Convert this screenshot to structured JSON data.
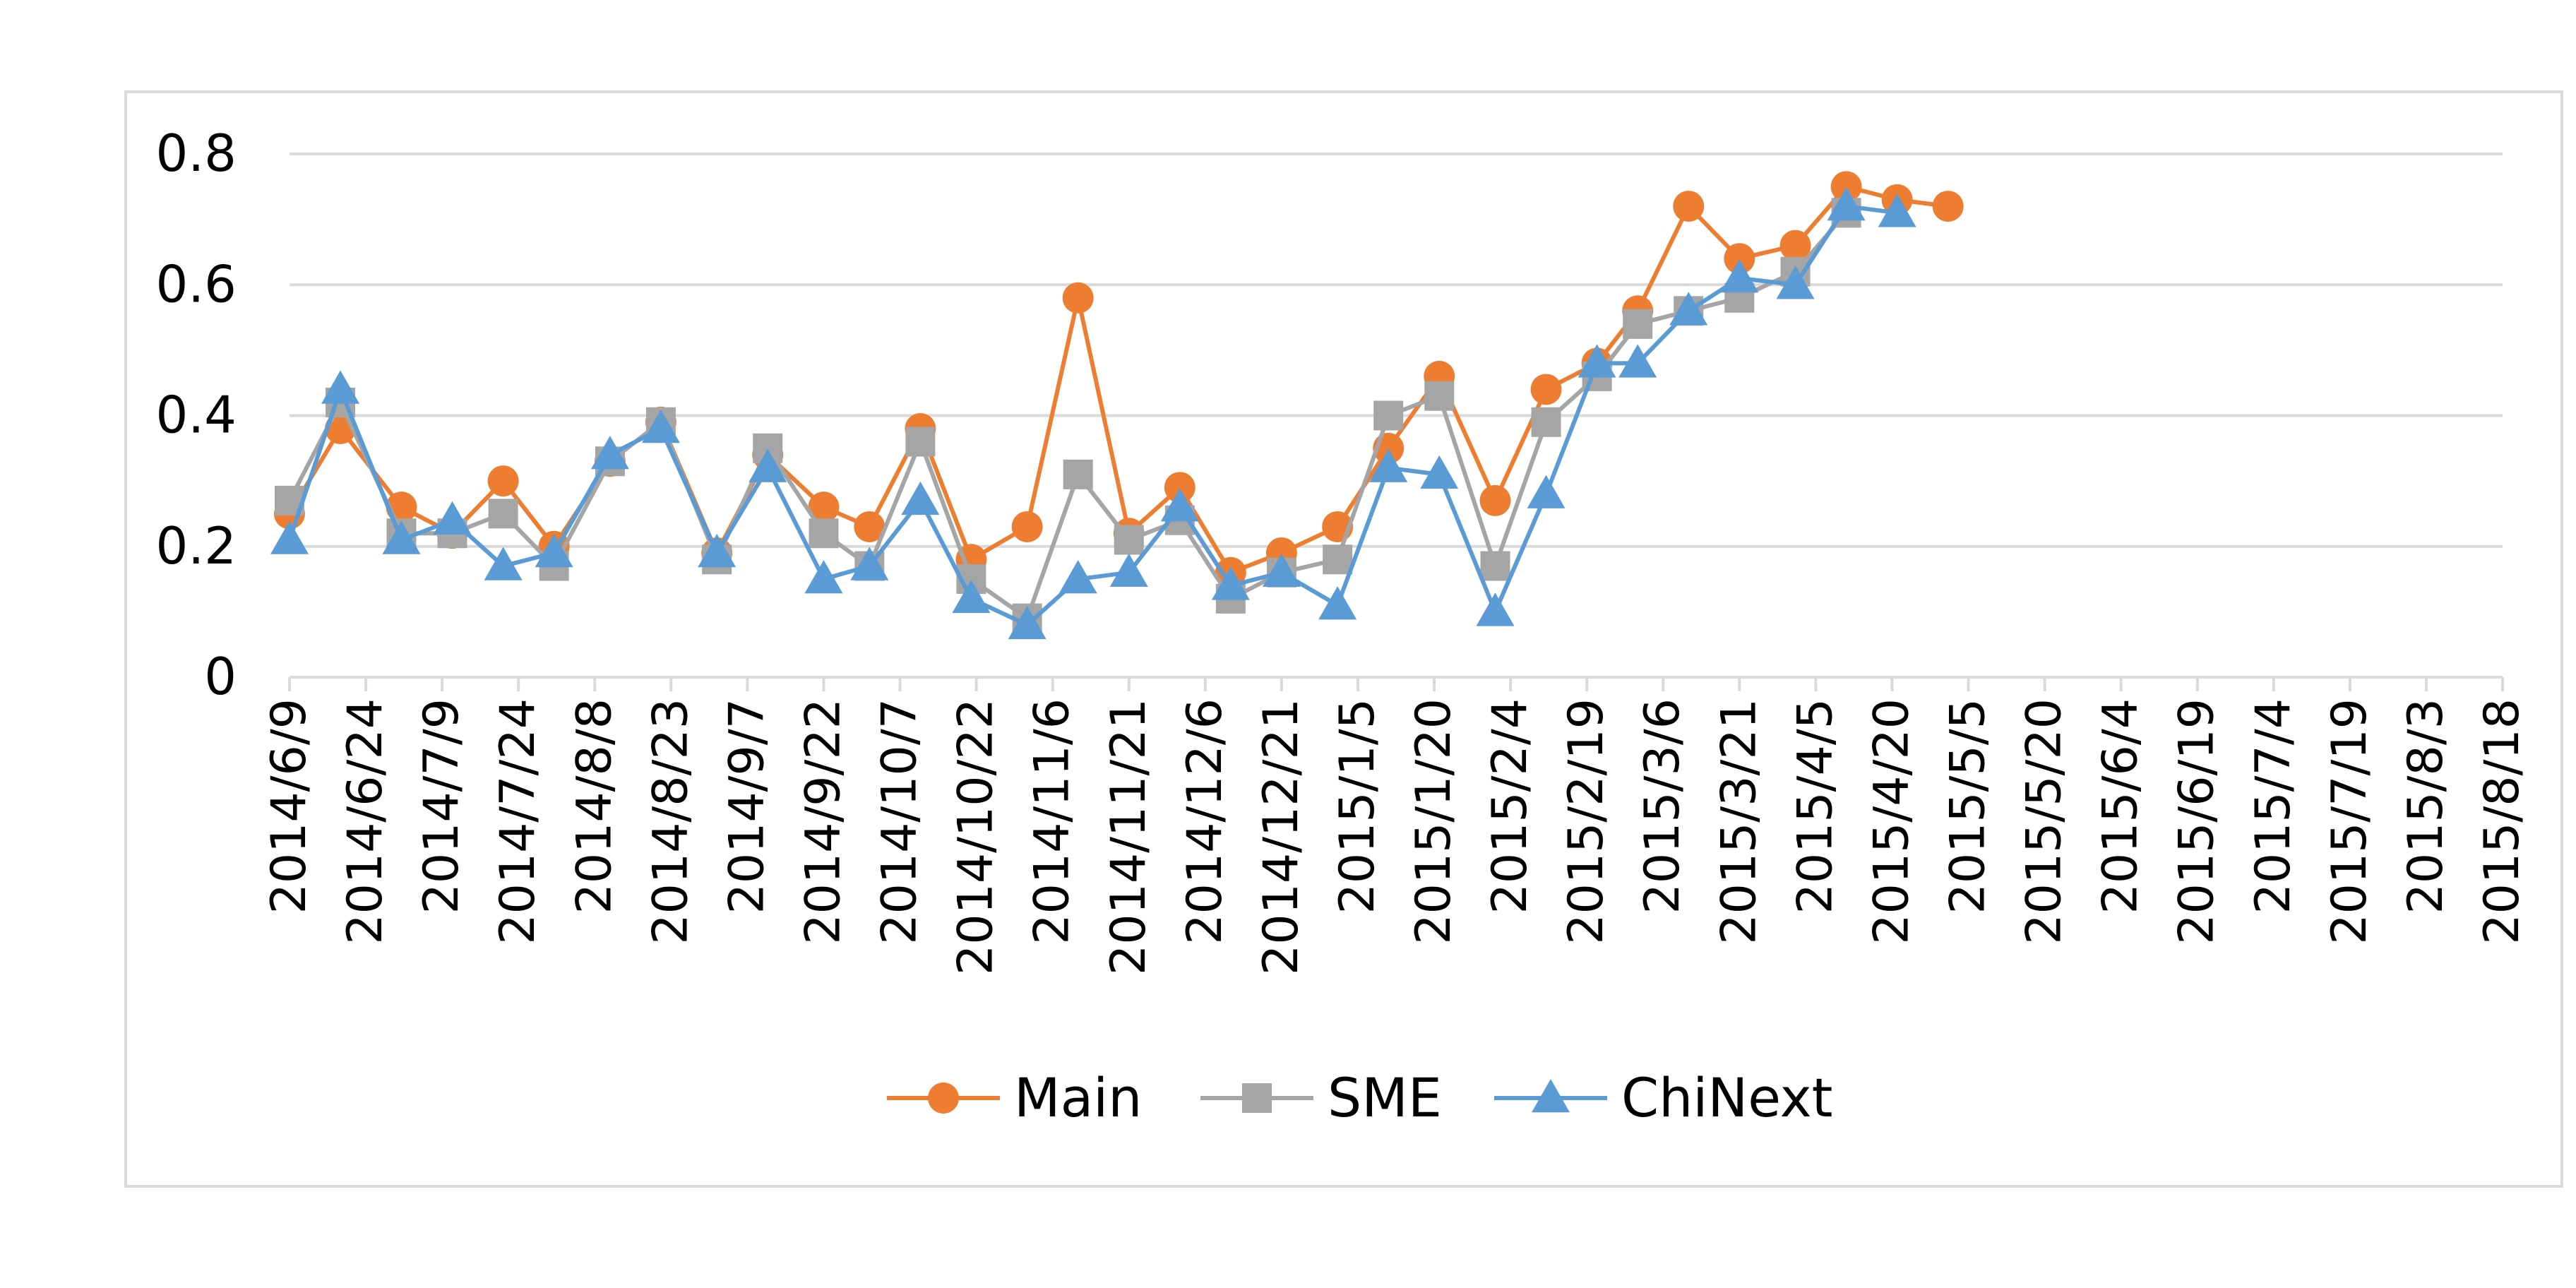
{
  "chart_data": {
    "type": "line",
    "title": "",
    "xlabel": "",
    "ylabel": "",
    "ylim": [
      0,
      0.8
    ],
    "yticks": [
      "0",
      "0.2",
      "0.4",
      "0.6",
      "0.8"
    ],
    "grid": true,
    "legend_position": "bottom",
    "categories": [
      "2014/6/9",
      "2014/6/24",
      "2014/7/9",
      "2014/7/24",
      "2014/8/8",
      "2014/8/23",
      "2014/9/7",
      "2014/9/22",
      "2014/10/7",
      "2014/10/22",
      "2014/11/6",
      "2014/11/21",
      "2014/12/6",
      "2014/12/21",
      "2015/1/5",
      "2015/1/20",
      "2015/2/4",
      "2015/2/19",
      "2015/3/6",
      "2015/3/21",
      "2015/4/5",
      "2015/4/20",
      "2015/5/5",
      "2015/5/20",
      "2015/6/4",
      "2015/6/19",
      "2015/7/4",
      "2015/7/19",
      "2015/8/3",
      "2015/8/18"
    ],
    "x": [
      "2014/6/9",
      "2014/6/24",
      "2014/7/9",
      "2014/7/24",
      "2014/8/8",
      "2014/8/23",
      "2014/9/7",
      "2014/9/22",
      "2014/10/7",
      "2014/10/22",
      "2014/11/6",
      "2014/11/21",
      "2014/12/6",
      "2014/12/21",
      "2015/1/5",
      "2015/1/20",
      "2015/2/4",
      "2015/2/19",
      "2015/3/6",
      "2015/3/21",
      "2015/4/5",
      "2015/4/20",
      "2015/5/5",
      "2015/5/20",
      "2015/6/4",
      "2015/6/19",
      "2015/7/4",
      "2015/7/19",
      "2015/8/3",
      "2015/8/18"
    ],
    "series": [
      {
        "name": "Main",
        "color": "#ED7D31",
        "marker": "circle",
        "x": [
          "2014/6/9",
          "2014/6/19",
          "2014/7/1",
          "2014/7/11",
          "2014/7/21",
          "2014/7/31",
          "2014/8/11",
          "2014/8/21",
          "2014/9/1",
          "2014/9/11",
          "2014/9/22",
          "2014/10/1",
          "2014/10/11",
          "2014/10/21",
          "2014/11/1",
          "2014/11/11",
          "2014/11/21",
          "2014/12/1",
          "2014/12/11",
          "2014/12/21",
          "2015/1/1",
          "2015/1/11",
          "2015/1/21",
          "2015/2/1",
          "2015/2/11",
          "2015/2/21",
          "2015/3/1",
          "2015/3/11",
          "2015/3/21",
          "2015/4/1",
          "2015/4/11",
          "2015/4/21",
          "2015/5/1"
        ],
        "values": [
          0.25,
          0.38,
          0.26,
          0.22,
          0.3,
          0.2,
          0.33,
          0.39,
          0.19,
          0.34,
          0.26,
          0.23,
          0.38,
          0.18,
          0.23,
          0.58,
          0.22,
          0.29,
          0.16,
          0.19,
          0.23,
          0.35,
          0.46,
          0.27,
          0.44,
          0.48,
          0.56,
          0.72,
          0.64,
          0.66,
          0.75,
          0.73,
          0.72
        ]
      },
      {
        "name": "SME",
        "color": "#A5A5A5",
        "marker": "square",
        "x": [
          "2014/6/9",
          "2014/6/19",
          "2014/7/1",
          "2014/7/11",
          "2014/7/21",
          "2014/7/31",
          "2014/8/11",
          "2014/8/21",
          "2014/9/1",
          "2014/9/11",
          "2014/9/22",
          "2014/10/1",
          "2014/10/11",
          "2014/10/21",
          "2014/11/1",
          "2014/11/11",
          "2014/11/21",
          "2014/12/1",
          "2014/12/11",
          "2014/12/21",
          "2015/1/1",
          "2015/1/11",
          "2015/1/21",
          "2015/2/1",
          "2015/2/11",
          "2015/2/21",
          "2015/3/1",
          "2015/3/11",
          "2015/3/21",
          "2015/4/1",
          "2015/4/11"
        ],
        "values": [
          0.27,
          0.42,
          0.22,
          0.22,
          0.25,
          0.17,
          0.33,
          0.39,
          0.18,
          0.35,
          0.22,
          0.17,
          0.36,
          0.15,
          0.09,
          0.31,
          0.21,
          0.24,
          0.12,
          0.16,
          0.18,
          0.4,
          0.43,
          0.17,
          0.39,
          0.46,
          0.54,
          0.56,
          0.58,
          0.62,
          0.71
        ]
      },
      {
        "name": "ChiNext",
        "color": "#5B9BD5",
        "marker": "triangle",
        "x": [
          "2014/6/9",
          "2014/6/19",
          "2014/7/1",
          "2014/7/11",
          "2014/7/21",
          "2014/7/31",
          "2014/8/11",
          "2014/8/21",
          "2014/9/1",
          "2014/9/11",
          "2014/9/22",
          "2014/10/1",
          "2014/10/11",
          "2014/10/21",
          "2014/11/1",
          "2014/11/11",
          "2014/11/21",
          "2014/12/1",
          "2014/12/11",
          "2014/12/21",
          "2015/1/1",
          "2015/1/11",
          "2015/1/21",
          "2015/2/1",
          "2015/2/11",
          "2015/2/21",
          "2015/3/1",
          "2015/3/11",
          "2015/3/21",
          "2015/4/1",
          "2015/4/11",
          "2015/4/21"
        ],
        "values": [
          0.21,
          0.44,
          0.21,
          0.24,
          0.17,
          0.19,
          0.34,
          0.38,
          0.19,
          0.32,
          0.15,
          0.17,
          0.27,
          0.12,
          0.08,
          0.15,
          0.16,
          0.26,
          0.14,
          0.16,
          0.11,
          0.32,
          0.31,
          0.1,
          0.28,
          0.48,
          0.48,
          0.56,
          0.61,
          0.6,
          0.72,
          0.71
        ]
      }
    ]
  }
}
